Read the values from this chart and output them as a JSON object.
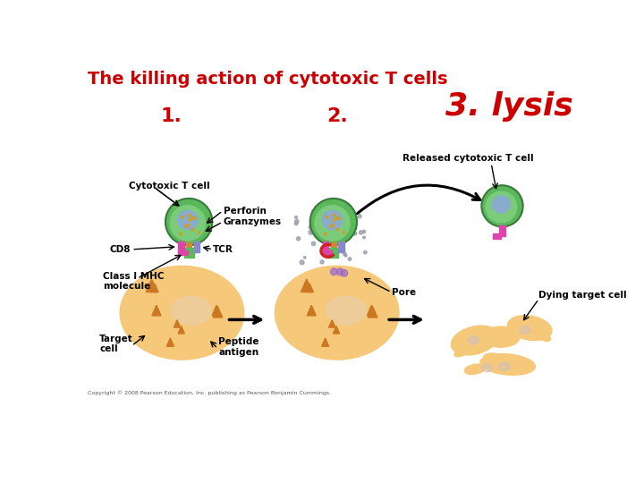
{
  "title": "The killing action of cytotoxic T cells",
  "title_color": "#cc0000",
  "title_fontsize": 14,
  "background_color": "#ffffff",
  "step1_label": "1.",
  "step2_label": "2.",
  "step3_label": "3. lysis",
  "step_label_color": "#cc0000",
  "step_label_fontsize": 16,
  "labels": {
    "cytotoxic_t_cell": "Cytotoxic T cell",
    "perforin": "Perforin",
    "granzymes": "Granzymes",
    "cd8": "CD8",
    "tcr": "TCR",
    "class_mhc": "Class I MHC\nmolecule",
    "target_cell": "Target\ncell",
    "peptide_antigen": "Peptide\nantigen",
    "pore": "Pore",
    "released_cytotoxic": "Released cytotoxic T cell",
    "dying_target": "Dying target cell"
  },
  "label_fontsize": 7.5,
  "copyright": "Copyright © 2008 Pearson Education, Inc. publishing as Pearson Benjamin Cummings.",
  "copyright_fontsize": 4.5,
  "colors": {
    "t_cell_outer": "#5ab85a",
    "t_cell_inner": "#8aaccc",
    "t_cell_edge": "#3a7a3a",
    "target_body": "#f5c87a",
    "target_nucleus": "#e8d0b8",
    "target_inclusion": "#cc7722",
    "mhc_green": "#5aba5a",
    "cd8_pink": "#dd44aa",
    "tcr_teal": "#8888cc",
    "pore_red": "#cc2222",
    "granule": "#c8a030",
    "scatter_dot": "#9999aa",
    "arrow_black": "#111111",
    "dying_body": "#f5c87a",
    "dying_nucleus": "#d4c0b8"
  }
}
